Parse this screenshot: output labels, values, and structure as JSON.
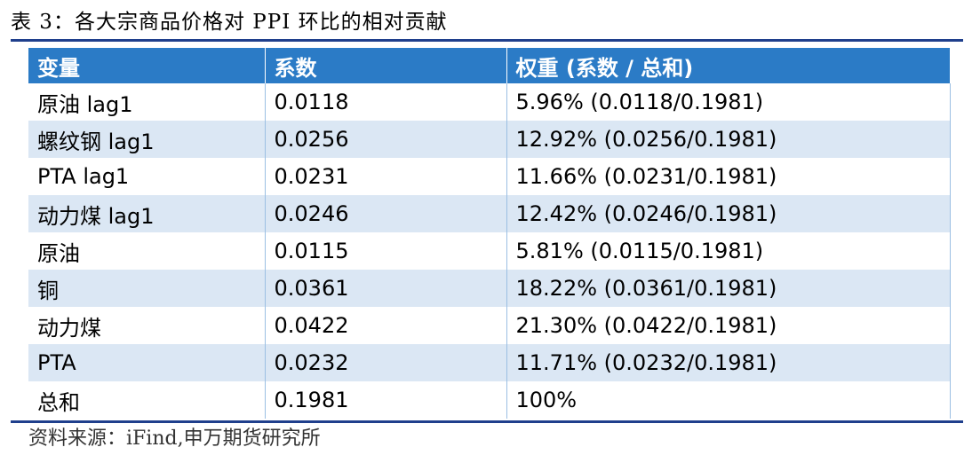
{
  "title": "表 3：各大宗商品价格对 PPI 环比的相对贡献",
  "table": {
    "headers": [
      "变量",
      "系数",
      "权重 (系数 / 总和)"
    ],
    "rows": [
      [
        "原油 lag1",
        "0.0118",
        "5.96% (0.0118/0.1981)"
      ],
      [
        "螺纹钢 lag1",
        "0.0256",
        "12.92% (0.0256/0.1981)"
      ],
      [
        "PTA lag1",
        "0.0231",
        "11.66% (0.0231/0.1981)"
      ],
      [
        "动力煤 lag1",
        "0.0246",
        "12.42% (0.0246/0.1981)"
      ],
      [
        "原油",
        "0.0115",
        "5.81% (0.0115/0.1981)"
      ],
      [
        "铜",
        "0.0361",
        "18.22% (0.0361/0.1981)"
      ],
      [
        "动力煤",
        "0.0422",
        "21.30% (0.0422/0.1981)"
      ],
      [
        "PTA",
        "0.0232",
        "11.71% (0.0232/0.1981)"
      ],
      [
        "总和",
        "0.1981",
        "100%"
      ]
    ]
  },
  "source": "资料来源：iFind,申万期货研究所",
  "colors": {
    "header_bg": "#2b7bc6",
    "stripe": "#dbe7f4",
    "rule": "#1f3f8c"
  }
}
